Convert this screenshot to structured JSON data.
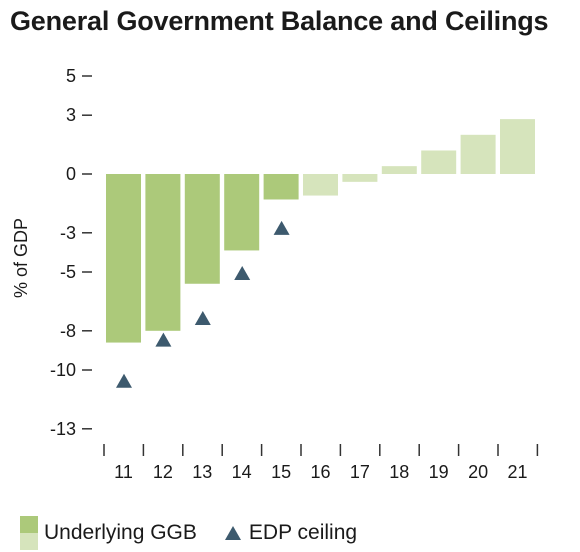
{
  "colors": {
    "actual": "#acc97a",
    "forecast": "#d6e4bc",
    "marker": "#3d5a6e",
    "axis": "#333333"
  },
  "chart_data": {
    "type": "bar",
    "title": "General Government Balance and Ceilings",
    "ylabel": "% of GDP",
    "xlabel": "",
    "categories": [
      "11",
      "12",
      "13",
      "14",
      "15",
      "16",
      "17",
      "18",
      "19",
      "20",
      "21"
    ],
    "ylim": [
      -13,
      5
    ],
    "yticks": [
      5,
      3,
      0,
      -3,
      -5,
      -8,
      -10,
      -13
    ],
    "series": [
      {
        "name": "Underlying GGB",
        "type": "bar",
        "values": [
          -8.6,
          -8.0,
          -5.6,
          -3.9,
          -1.3,
          -1.1,
          -0.4,
          0.4,
          1.2,
          2.0,
          2.8
        ],
        "forecast_from_index": 5
      },
      {
        "name": "EDP ceiling",
        "type": "scatter",
        "marker": "triangle",
        "values": [
          -10.6,
          -8.5,
          -7.4,
          -5.1,
          -2.8,
          null,
          null,
          null,
          null,
          null,
          null
        ]
      }
    ],
    "legend": {
      "placement": "bottom-left",
      "entries": [
        "Underlying GGB",
        "EDP ceiling"
      ]
    },
    "grid": false
  }
}
